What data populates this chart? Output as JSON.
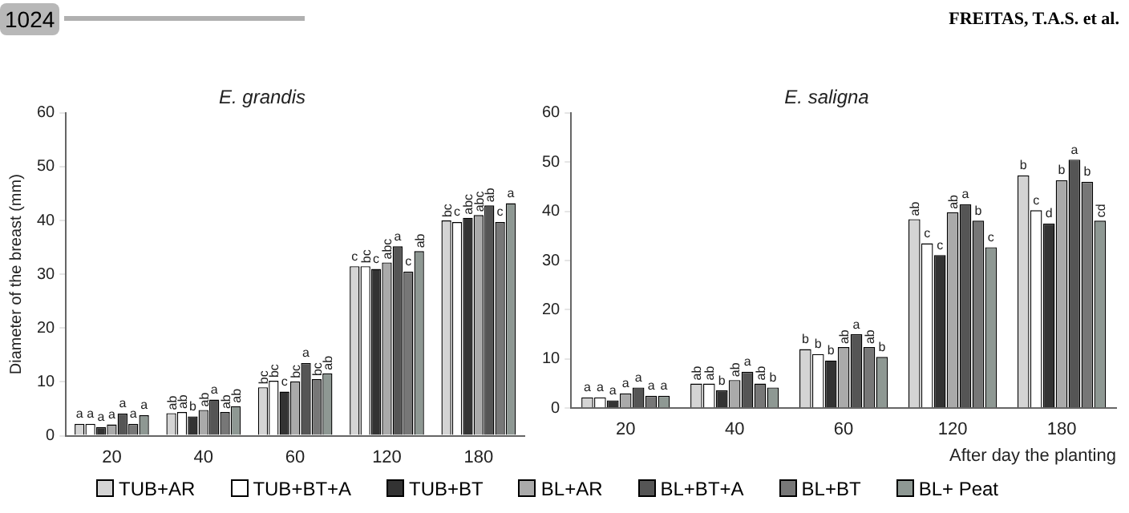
{
  "chart_data": [
    {
      "type": "bar",
      "title": "E. grandis",
      "ylabel": "Diameter of the breast (mm)",
      "annotations": [
        "1024",
        "FREITAS, T.A.S. et al."
      ],
      "categories": [
        "20",
        "40",
        "60",
        "120",
        "180"
      ],
      "ylim": [
        0,
        60
      ],
      "yticks": [
        0,
        10,
        20,
        30,
        40,
        50,
        60
      ],
      "grid": false,
      "legend": "bottom",
      "series": [
        {
          "name": "TUB+AR",
          "color": "#d4d4d4",
          "values": [
            2.2,
            4.2,
            9.0,
            31.5,
            40.0
          ],
          "value_labels": [
            "a",
            "ab",
            "bc",
            "c",
            "bc"
          ]
        },
        {
          "name": "TUB+BT+A",
          "color": "#ffffff",
          "values": [
            2.2,
            4.4,
            10.2,
            31.5,
            39.7
          ],
          "value_labels": [
            "a",
            "ab",
            "bc",
            "bc",
            "c"
          ]
        },
        {
          "name": "TUB+BT",
          "color": "#333333",
          "values": [
            1.6,
            3.6,
            8.2,
            31.0,
            40.5
          ],
          "value_labels": [
            "a",
            "b",
            "c",
            "c",
            "abc"
          ]
        },
        {
          "name": "BL+AR",
          "color": "#aaaaaa",
          "values": [
            2.1,
            4.8,
            10.1,
            32.2,
            41.0
          ],
          "value_labels": [
            "a",
            "ab",
            "bc",
            "abc",
            "abc"
          ]
        },
        {
          "name": "BL+BT+A",
          "color": "#555555",
          "values": [
            4.1,
            6.7,
            13.5,
            35.2,
            42.8
          ],
          "value_labels": [
            "a",
            "a",
            "a",
            "a",
            "ab"
          ]
        },
        {
          "name": "BL+BT",
          "color": "#777777",
          "values": [
            2.2,
            4.4,
            10.5,
            30.5,
            39.7
          ],
          "value_labels": [
            "a",
            "ab",
            "bc",
            "c",
            "c"
          ]
        },
        {
          "name": "BL+ Peat",
          "color": "#8e9893",
          "values": [
            3.8,
            5.5,
            11.6,
            34.3,
            43.2
          ],
          "value_labels": [
            "a",
            "ab",
            "ab",
            "ab",
            "a"
          ]
        }
      ]
    },
    {
      "type": "bar",
      "title": "E. saligna",
      "xlabel": "After day the planting",
      "categories": [
        "20",
        "40",
        "60",
        "120",
        "180"
      ],
      "ylim": [
        0,
        60
      ],
      "yticks": [
        0,
        10,
        20,
        30,
        40,
        50,
        60
      ],
      "grid": false,
      "series": [
        {
          "color": "#d4d4d4",
          "values": [
            2.2,
            5.0,
            12.0,
            38.4,
            47.3
          ],
          "value_labels": [
            "a",
            "ab",
            "b",
            "ab",
            "b"
          ]
        },
        {
          "color": "#ffffff",
          "values": [
            2.2,
            5.0,
            11.0,
            33.5,
            40.2
          ],
          "value_labels": [
            "a",
            "ab",
            "b",
            "c",
            "c"
          ]
        },
        {
          "color": "#333333",
          "values": [
            1.6,
            3.6,
            9.7,
            31.1,
            37.5
          ],
          "value_labels": [
            "a",
            "b",
            "b",
            "c",
            "d"
          ]
        },
        {
          "color": "#aaaaaa",
          "values": [
            3.0,
            5.7,
            12.4,
            39.8,
            46.3
          ],
          "value_labels": [
            "a",
            "ab",
            "ab",
            "ab",
            "b"
          ]
        },
        {
          "color": "#555555",
          "values": [
            4.2,
            7.4,
            15.0,
            41.4,
            50.5
          ],
          "value_labels": [
            "a",
            "a",
            "a",
            "a",
            "a"
          ]
        },
        {
          "color": "#777777",
          "values": [
            2.5,
            5.0,
            12.4,
            38.1,
            46.0
          ],
          "value_labels": [
            "a",
            "ab",
            "ab",
            "b",
            "b"
          ]
        },
        {
          "color": "#8e9893",
          "values": [
            2.5,
            4.2,
            10.4,
            32.7,
            38.1
          ],
          "value_labels": [
            "a",
            "b",
            "b",
            "c",
            "cd"
          ]
        }
      ]
    }
  ]
}
